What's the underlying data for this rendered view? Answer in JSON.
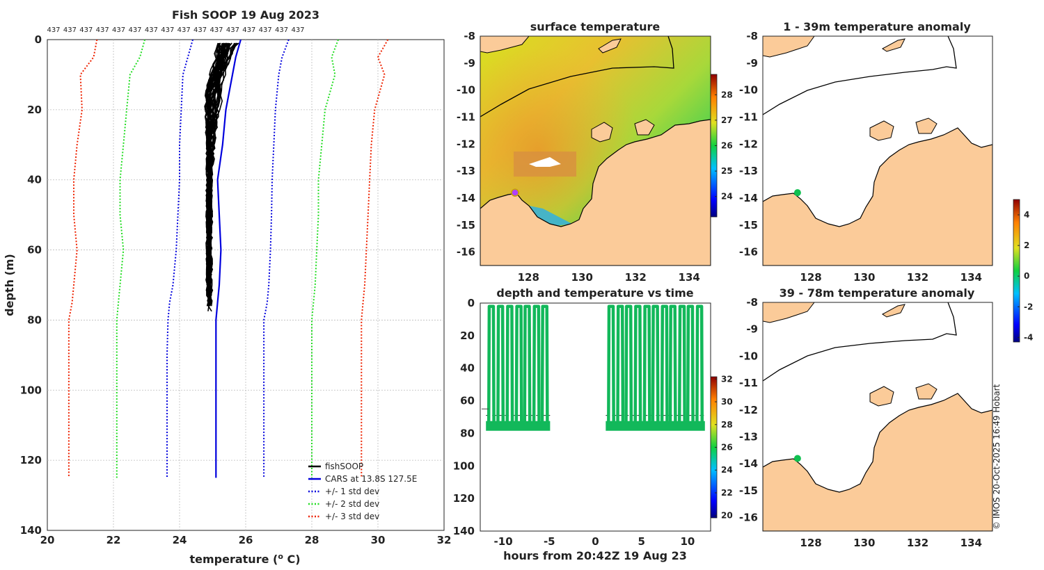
{
  "colors": {
    "land": "#fbcb99",
    "coast": "#000000",
    "profile": "#000000",
    "cars": "#0000dd",
    "std1": "#0000dd",
    "std2": "#22dd22",
    "std3": "#ee2200",
    "track": "#12b85a",
    "marker_sst": "#b040ff",
    "marker_anom": "#10c050"
  },
  "count_label": "437",
  "count_repeat": 16,
  "credit": "© IMOS 20-Oct-2025 16:49 Hobart",
  "chart_data": [
    {
      "type": "line",
      "id": "profile",
      "title": "Fish SOOP 19 Aug 2023",
      "xlabel": "temperature (",
      "xlabel_sup": "o",
      "xlabel_end": " C)",
      "ylabel": "depth (m)",
      "xlim": [
        20,
        32
      ],
      "ylim": [
        0,
        140
      ],
      "xticks": [
        "20",
        "22",
        "24",
        "26",
        "28",
        "30",
        "32"
      ],
      "yticks": [
        "0",
        "20",
        "40",
        "60",
        "80",
        "100",
        "120",
        "140"
      ],
      "legend": [
        "fishSOOP",
        "CARS at 13.8S 127.5E",
        "+/- 1 std dev",
        "+/- 2 std dev",
        "+/- 3 std dev"
      ],
      "legend_position": "bottom-right",
      "fish_profiles": {
        "count": 40,
        "surface_temp_range": [
          25.2,
          25.8
        ],
        "mid_temp_range": [
          24.8,
          25.3
        ],
        "bottom_temp_range": [
          24.85,
          24.95
        ],
        "max_depth_range": [
          70,
          78
        ]
      },
      "series": [
        {
          "name": "CARS at 13.8S 127.5E",
          "style": "solid",
          "depth": [
            0,
            5,
            10,
            20,
            30,
            40,
            50,
            60,
            70,
            75,
            80,
            90,
            100,
            110,
            125
          ],
          "temp": [
            25.85,
            25.7,
            25.6,
            25.4,
            25.3,
            25.15,
            25.2,
            25.25,
            25.2,
            25.15,
            25.1,
            25.1,
            25.1,
            25.1,
            25.1
          ]
        },
        {
          "name": "-1 std",
          "style": "dotted",
          "depth": [
            0,
            5,
            10,
            20,
            30,
            40,
            50,
            60,
            70,
            75,
            80,
            90,
            100,
            110,
            125
          ],
          "temp": [
            24.4,
            24.25,
            24.1,
            24.05,
            24.0,
            24.0,
            23.95,
            23.9,
            23.8,
            23.7,
            23.65,
            23.62,
            23.62,
            23.62,
            23.62
          ]
        },
        {
          "name": "+1 std",
          "style": "dotted",
          "depth": [
            0,
            5,
            10,
            20,
            30,
            40,
            50,
            60,
            70,
            75,
            80,
            90,
            100,
            110,
            125
          ],
          "temp": [
            27.3,
            27.1,
            27.0,
            26.9,
            26.85,
            26.8,
            26.78,
            26.75,
            26.7,
            26.65,
            26.55,
            26.55,
            26.55,
            26.55,
            26.55
          ]
        },
        {
          "name": "-2 std",
          "style": "dotted",
          "depth": [
            0,
            5,
            10,
            20,
            30,
            40,
            50,
            60,
            70,
            75,
            80,
            90,
            100,
            110,
            125
          ],
          "temp": [
            22.95,
            22.8,
            22.5,
            22.4,
            22.3,
            22.2,
            22.2,
            22.3,
            22.2,
            22.15,
            22.1,
            22.1,
            22.1,
            22.1,
            22.1
          ]
        },
        {
          "name": "+2 std",
          "style": "dotted",
          "depth": [
            0,
            5,
            10,
            20,
            30,
            40,
            50,
            60,
            70,
            75,
            80,
            90,
            100,
            110,
            125
          ],
          "temp": [
            28.8,
            28.6,
            28.7,
            28.4,
            28.3,
            28.2,
            28.2,
            28.15,
            28.1,
            28.05,
            28.0,
            28.0,
            28.0,
            28.0,
            28.0
          ]
        },
        {
          "name": "-3 std",
          "style": "dotted",
          "depth": [
            0,
            5,
            10,
            20,
            30,
            40,
            50,
            60,
            70,
            75,
            80,
            90,
            100,
            110,
            125
          ],
          "temp": [
            21.5,
            21.4,
            21.0,
            21.05,
            20.9,
            20.8,
            20.8,
            20.9,
            20.8,
            20.75,
            20.65,
            20.65,
            20.65,
            20.65,
            20.65
          ]
        },
        {
          "name": "+3 std",
          "style": "dotted",
          "depth": [
            0,
            5,
            10,
            20,
            30,
            40,
            50,
            60,
            70,
            75,
            80,
            90,
            100,
            110,
            125
          ],
          "temp": [
            30.3,
            30.0,
            30.2,
            29.9,
            29.8,
            29.75,
            29.7,
            29.65,
            29.6,
            29.55,
            29.5,
            29.5,
            29.5,
            29.5,
            29.5
          ]
        }
      ]
    },
    {
      "type": "heatmap",
      "id": "sst",
      "title": "surface temperature",
      "xlim": [
        126.2,
        134.8
      ],
      "ylim": [
        -16.5,
        -8
      ],
      "xticks": [
        "128",
        "130",
        "132",
        "134"
      ],
      "yticks": [
        "-8",
        "-9",
        "-10",
        "-11",
        "-12",
        "-13",
        "-14",
        "-15",
        "-16"
      ],
      "colorbar": {
        "min": 23.2,
        "max": 28.8,
        "ticks": [
          "24",
          "25",
          "26",
          "27",
          "28"
        ]
      },
      "marker": {
        "lon": 127.5,
        "lat": -13.8
      }
    },
    {
      "type": "scatter",
      "id": "track",
      "title": "depth and temperature vs time",
      "xlabel": "hours from 20:42Z 19 Aug 23",
      "xlim": [
        -12.5,
        12.5
      ],
      "ylim": [
        0,
        140
      ],
      "xticks": [
        "-10",
        "-5",
        "0",
        "5",
        "10"
      ],
      "yticks": [
        "0",
        "20",
        "40",
        "60",
        "80",
        "100",
        "120",
        "140"
      ],
      "colorbar": {
        "min": 19.8,
        "max": 32.2,
        "ticks": [
          "20",
          "22",
          "24",
          "26",
          "28",
          "30",
          "32"
        ]
      },
      "dive_hours": [
        -11.3,
        -10.3,
        -9.3,
        -8.3,
        -7.4,
        -6.4,
        -5.5,
        1.7,
        2.7,
        3.6,
        4.6,
        5.6,
        6.5,
        7.5,
        8.4,
        9.4,
        10.3,
        11.3
      ],
      "surface_depth": 2,
      "bottom_depth": 75,
      "mean_bottom_depth": 69,
      "gap_hours": [
        -4.8,
        1.6
      ]
    },
    {
      "type": "heatmap",
      "id": "anom1",
      "title": "1 - 39m temperature anomaly",
      "xlim": [
        126.2,
        134.8
      ],
      "ylim": [
        -16.5,
        -8
      ],
      "xticks": [
        "128",
        "130",
        "132",
        "134"
      ],
      "yticks": [
        "-8",
        "-9",
        "-10",
        "-11",
        "-12",
        "-13",
        "-14",
        "-15",
        "-16"
      ],
      "marker": {
        "lon": 127.5,
        "lat": -13.8
      }
    },
    {
      "type": "heatmap",
      "id": "anom2",
      "title": "39 - 78m temperature anomaly",
      "xlim": [
        126.2,
        134.8
      ],
      "ylim": [
        -16.5,
        -8
      ],
      "xticks": [
        "128",
        "130",
        "132",
        "134"
      ],
      "yticks": [
        "-8",
        "-9",
        "-10",
        "-11",
        "-12",
        "-13",
        "-14",
        "-15",
        "-16"
      ],
      "marker": {
        "lon": 127.5,
        "lat": -13.8
      }
    },
    {
      "type": "colorbar",
      "id": "anom_colorbar",
      "min": -4.3,
      "max": 5.0,
      "ticks": [
        "4",
        "2",
        "0",
        "-2",
        "-4"
      ]
    }
  ]
}
